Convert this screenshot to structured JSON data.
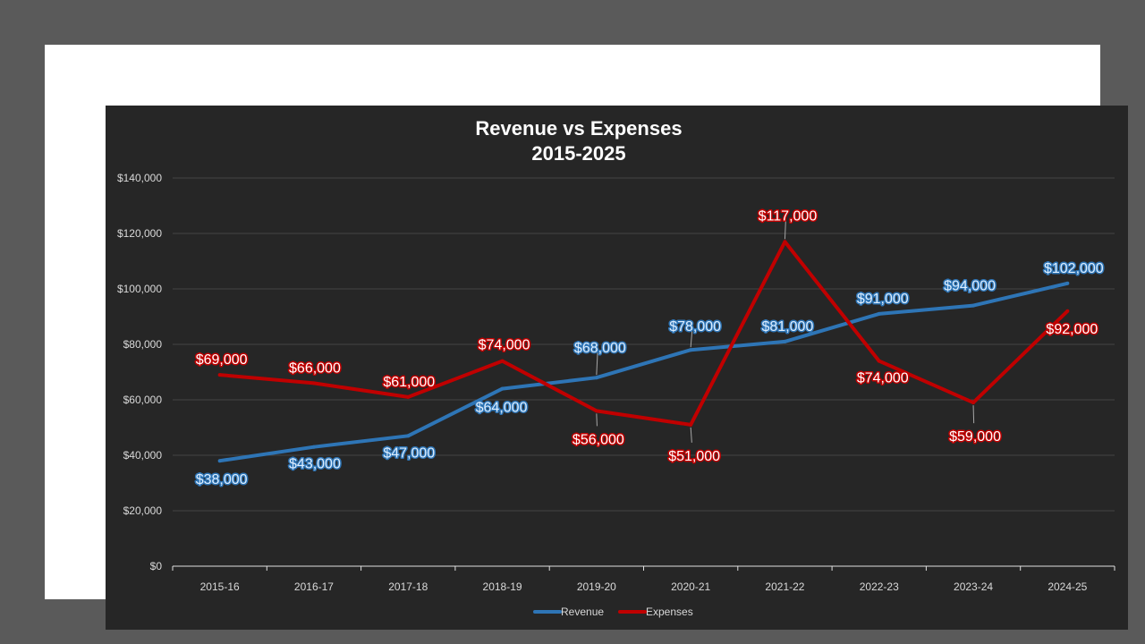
{
  "chart_data": {
    "type": "line",
    "title": "Revenue vs Expenses",
    "subtitle": "2015-2025",
    "categories": [
      "2015-16",
      "2016-17",
      "2017-18",
      "2018-19",
      "2019-20",
      "2020-21",
      "2021-22",
      "2022-23",
      "2023-24",
      "2024-25"
    ],
    "series": [
      {
        "name": "Revenue",
        "color": "#2e75b6",
        "values": [
          38000,
          43000,
          47000,
          64000,
          68000,
          78000,
          81000,
          91000,
          94000,
          102000
        ],
        "labels": [
          "$38,000",
          "$43,000",
          "$47,000",
          "$64,000",
          "$68,000",
          "$78,000",
          "$81,000",
          "$91,000",
          "$94,000",
          "$102,000"
        ]
      },
      {
        "name": "Expenses",
        "color": "#c00000",
        "values": [
          69000,
          66000,
          61000,
          74000,
          56000,
          51000,
          117000,
          74000,
          59000,
          92000
        ],
        "labels": [
          "$69,000",
          "$66,000",
          "$61,000",
          "$74,000",
          "$56,000",
          "$51,000",
          "$117,000",
          "$74,000",
          "$59,000",
          "$92,000"
        ]
      }
    ],
    "ylim": [
      0,
      140000
    ],
    "yticks": [
      "$0",
      "$20,000",
      "$40,000",
      "$60,000",
      "$80,000",
      "$100,000",
      "$120,000",
      "$140,000"
    ],
    "grid": true,
    "legend": "bottom",
    "xlabel": "",
    "ylabel": ""
  }
}
